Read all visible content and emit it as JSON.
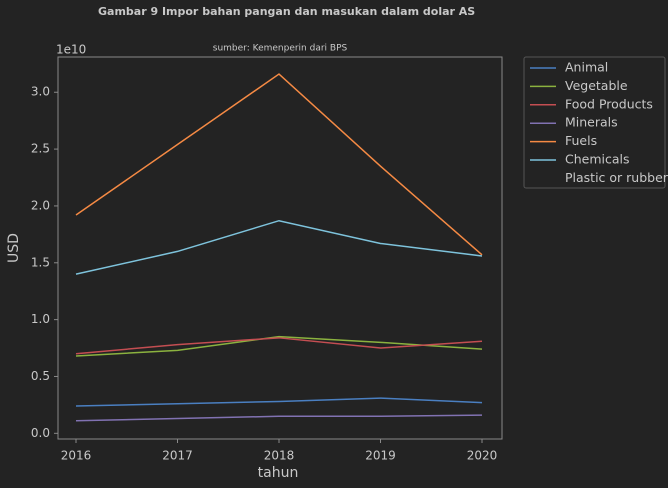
{
  "chart_data": {
    "type": "line",
    "title": "Gambar 9 Impor bahan pangan dan masukan dalam dolar AS",
    "subtitle": "sumber: Kemenperin dari BPS",
    "xlabel": "tahun",
    "ylabel": "USD",
    "y_offset_label": "1e10",
    "categories": [
      "2016",
      "2017",
      "2018",
      "2019",
      "2020"
    ],
    "series": [
      {
        "name": "Animal",
        "color": "#4a7fc1",
        "values": [
          0.24,
          0.26,
          0.28,
          0.31,
          0.27
        ]
      },
      {
        "name": "Vegetable",
        "color": "#8bb23f",
        "values": [
          0.68,
          0.73,
          0.85,
          0.8,
          0.74
        ]
      },
      {
        "name": "Food Products",
        "color": "#c44e52",
        "values": [
          0.7,
          0.78,
          0.84,
          0.75,
          0.81
        ]
      },
      {
        "name": "Minerals",
        "color": "#8172b2",
        "values": [
          0.11,
          0.13,
          0.15,
          0.15,
          0.16
        ]
      },
      {
        "name": "Fuels",
        "color": "#f58a44",
        "values": [
          1.92,
          2.54,
          3.16,
          2.35,
          1.57
        ]
      },
      {
        "name": "Chemicals",
        "color": "#7ec3dc",
        "values": [
          1.4,
          1.6,
          1.87,
          1.67,
          1.56
        ]
      },
      {
        "name": "Plastic or rubber",
        "values": [
          null,
          null,
          null,
          null,
          null
        ]
      }
    ],
    "ylim": [
      -0.05,
      3.31
    ],
    "yticks": [
      {
        "value": 0,
        "label": "0.0"
      },
      {
        "value": 0.5,
        "label": "0.5"
      },
      {
        "value": 1,
        "label": "1.0"
      },
      {
        "value": 1.5,
        "label": "1.5"
      },
      {
        "value": 2,
        "label": "2.0"
      },
      {
        "value": 2.5,
        "label": "2.5"
      },
      {
        "value": 3,
        "label": "3.0"
      }
    ],
    "legend": "outside-upper-right"
  }
}
